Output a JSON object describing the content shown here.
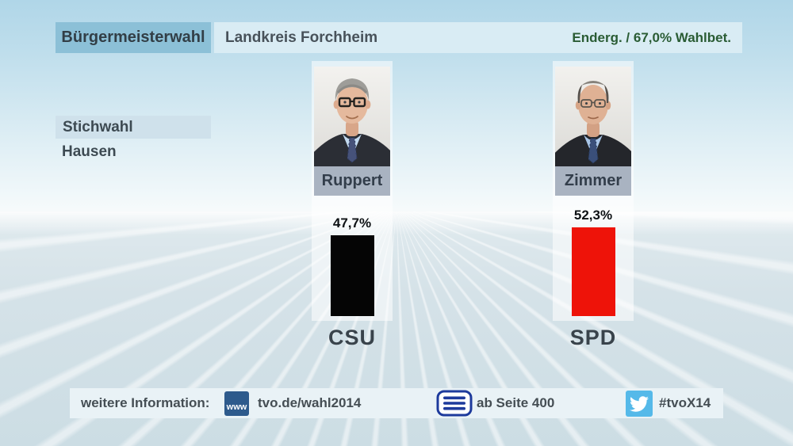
{
  "header": {
    "title": "Bürgermeisterwahl",
    "region": "Landkreis Forchheim",
    "status": "Enderg. / 67,0% Wahlbet."
  },
  "context": {
    "round": "Stichwahl",
    "municipality": "Hausen"
  },
  "chart_data": {
    "type": "bar",
    "title": "Stichwahl Hausen – Bürgermeisterwahl Landkreis Forchheim",
    "candidates": [
      "Ruppert",
      "Zimmer"
    ],
    "categories": [
      "CSU",
      "SPD"
    ],
    "values": [
      47.7,
      52.3
    ],
    "value_labels": [
      "47,7%",
      "52,3%"
    ],
    "bar_colors": [
      "#050505",
      "#ee1309"
    ],
    "unit": "percent of votes",
    "ylim": [
      0,
      55
    ],
    "legend": false,
    "grid": false,
    "notes": "final result, turnout 67,0%"
  },
  "footer": {
    "label": "weitere Information:",
    "www_badge": "www",
    "website": "tvo.de/wahl2014",
    "teletext": "ab Seite 400",
    "hashtag": "#tvoX14",
    "icons": [
      "www-badge-icon",
      "teletext-icon",
      "twitter-bird-icon"
    ]
  },
  "colors": {
    "status_text_green": "#2a5c34",
    "header_box_blue": "#8cc0d7",
    "header_strip_blue": "#d9ecf4",
    "round_box_blue": "#cfe1eb",
    "nameplate_gray": "#a9b3c1",
    "www_badge_navy": "#2d5a8c",
    "teletext_blue": "#1d3a9c",
    "twitter_blue": "#55b9e9"
  }
}
